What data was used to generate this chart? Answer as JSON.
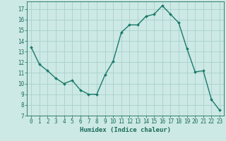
{
  "x": [
    0,
    1,
    2,
    3,
    4,
    5,
    6,
    7,
    8,
    9,
    10,
    11,
    12,
    13,
    14,
    15,
    16,
    17,
    18,
    19,
    20,
    21,
    22,
    23
  ],
  "y": [
    13.4,
    11.8,
    11.2,
    10.5,
    10.0,
    10.3,
    9.4,
    9.0,
    9.0,
    10.8,
    12.1,
    14.8,
    15.5,
    15.5,
    16.3,
    16.5,
    17.3,
    16.5,
    15.7,
    13.3,
    11.1,
    11.2,
    8.5,
    7.5
  ],
  "line_color": "#1a7a6a",
  "marker": "D",
  "marker_size": 2.0,
  "linewidth": 1.0,
  "bg_color": "#cce9e5",
  "grid_color": "#aacfcb",
  "xlabel": "Humidex (Indice chaleur)",
  "ylabel": "",
  "xlim": [
    -0.5,
    23.5
  ],
  "ylim": [
    7,
    17.7
  ],
  "yticks": [
    7,
    8,
    9,
    10,
    11,
    12,
    13,
    14,
    15,
    16,
    17
  ],
  "xticks": [
    0,
    1,
    2,
    3,
    4,
    5,
    6,
    7,
    8,
    9,
    10,
    11,
    12,
    13,
    14,
    15,
    16,
    17,
    18,
    19,
    20,
    21,
    22,
    23
  ],
  "tick_color": "#1a6b5a",
  "tick_fontsize": 5.5,
  "xlabel_fontsize": 6.5
}
